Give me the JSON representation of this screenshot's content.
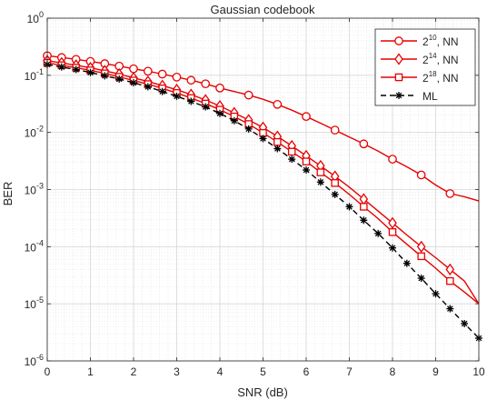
{
  "chart_data": {
    "type": "line",
    "title": "Gaussian codebook",
    "xlabel": "SNR (dB)",
    "ylabel": "BER",
    "xlim": [
      0,
      10
    ],
    "ylim": [
      1e-06,
      1
    ],
    "yscale": "log",
    "grid": true,
    "minor_grid": true,
    "legend_position": "top-right",
    "x_ticks": [
      "0",
      "1",
      "2",
      "3",
      "4",
      "5",
      "6",
      "7",
      "8",
      "9",
      "10"
    ],
    "y_ticks": [
      {
        "base": "10",
        "exp": "-6"
      },
      {
        "base": "10",
        "exp": "-5"
      },
      {
        "base": "10",
        "exp": "-4"
      },
      {
        "base": "10",
        "exp": "-3"
      },
      {
        "base": "10",
        "exp": "-2"
      },
      {
        "base": "10",
        "exp": "-1"
      },
      {
        "base": "10",
        "exp": "0"
      }
    ],
    "series": [
      {
        "name": "2^10, NN",
        "label_base": "2",
        "label_exp": "10",
        "label_suffix": ", NN",
        "color": "#e60000",
        "marker": "circle",
        "dash": "solid",
        "x": [
          0,
          0.333,
          0.667,
          1,
          1.333,
          1.667,
          2,
          2.333,
          2.667,
          3,
          3.333,
          3.667,
          4,
          4.333,
          4.667,
          5,
          5.333,
          5.667,
          6,
          6.333,
          6.667,
          7,
          7.333,
          7.667,
          8,
          8.333,
          8.667,
          9,
          9.333,
          9.667,
          10
        ],
        "y": [
          0.22,
          0.205,
          0.19,
          0.175,
          0.16,
          0.145,
          0.13,
          0.118,
          0.105,
          0.093,
          0.082,
          0.071,
          0.06,
          0.052,
          0.045,
          0.038,
          0.031,
          0.0245,
          0.019,
          0.0145,
          0.011,
          0.0083,
          0.0063,
          0.0047,
          0.0034,
          0.0025,
          0.0018,
          0.0012,
          0.00085,
          0.00075,
          0.00063
        ],
        "marker_x": [
          0,
          0.333,
          0.667,
          1,
          1.333,
          1.667,
          2,
          2.333,
          2.667,
          3,
          3.333,
          3.667,
          4,
          4.667,
          5.333,
          6,
          6.667,
          7.333,
          8,
          8.667,
          9.333
        ],
        "marker_y": [
          0.22,
          0.205,
          0.19,
          0.175,
          0.16,
          0.145,
          0.13,
          0.118,
          0.105,
          0.093,
          0.082,
          0.071,
          0.06,
          0.045,
          0.031,
          0.019,
          0.011,
          0.0063,
          0.0034,
          0.0018,
          0.00085
        ]
      },
      {
        "name": "2^14, NN",
        "label_base": "2",
        "label_exp": "14",
        "label_suffix": ", NN",
        "color": "#e60000",
        "marker": "diamond",
        "dash": "solid",
        "x": [
          0,
          0.333,
          0.667,
          1,
          1.333,
          1.667,
          2,
          2.333,
          2.667,
          3,
          3.333,
          3.667,
          4,
          4.333,
          4.667,
          5,
          5.333,
          5.667,
          6,
          6.333,
          6.667,
          7,
          7.333,
          7.667,
          8,
          8.333,
          8.667,
          9,
          9.333,
          9.667,
          10
        ],
        "y": [
          0.18,
          0.165,
          0.15,
          0.135,
          0.12,
          0.105,
          0.09,
          0.078,
          0.066,
          0.056,
          0.046,
          0.037,
          0.029,
          0.022,
          0.0165,
          0.0122,
          0.0085,
          0.0058,
          0.0039,
          0.0026,
          0.0017,
          0.0011,
          0.00068,
          0.00042,
          0.00026,
          0.00016,
          0.0001,
          6.4e-05,
          4e-05,
          2.5e-05,
          1e-05
        ],
        "marker_x": [
          0,
          0.333,
          0.667,
          1,
          1.333,
          1.667,
          2,
          2.333,
          2.667,
          3,
          3.333,
          3.667,
          4,
          4.333,
          4.667,
          5,
          5.333,
          5.667,
          6,
          6.333,
          6.667,
          7.333,
          8,
          8.667,
          9.333
        ],
        "marker_y": [
          0.18,
          0.165,
          0.15,
          0.135,
          0.12,
          0.105,
          0.09,
          0.078,
          0.066,
          0.056,
          0.046,
          0.037,
          0.029,
          0.022,
          0.0165,
          0.0122,
          0.0085,
          0.0058,
          0.0039,
          0.0026,
          0.0017,
          0.00068,
          0.00026,
          0.0001,
          4e-05
        ]
      },
      {
        "name": "2^18, NN",
        "label_base": "2",
        "label_exp": "18",
        "label_suffix": ", NN",
        "color": "#e60000",
        "marker": "square",
        "dash": "solid",
        "x": [
          0,
          0.333,
          0.667,
          1,
          1.333,
          1.667,
          2,
          2.333,
          2.667,
          3,
          3.333,
          3.667,
          4,
          4.333,
          4.667,
          5,
          5.333,
          5.667,
          6,
          6.333,
          6.667,
          7,
          7.333,
          7.667,
          8,
          8.333,
          8.667,
          9,
          9.333,
          9.667,
          10
        ],
        "y": [
          0.165,
          0.15,
          0.136,
          0.122,
          0.108,
          0.094,
          0.081,
          0.07,
          0.059,
          0.049,
          0.04,
          0.032,
          0.025,
          0.019,
          0.014,
          0.0098,
          0.0068,
          0.0046,
          0.0031,
          0.002,
          0.0013,
          0.00082,
          0.0005,
          0.00031,
          0.00018,
          0.00011,
          6.8e-05,
          4.2e-05,
          2.5e-05,
          1.6e-05,
          1e-05
        ],
        "marker_x": [
          0,
          0.333,
          0.667,
          1,
          1.333,
          1.667,
          2,
          2.333,
          2.667,
          3,
          3.333,
          3.667,
          4,
          4.333,
          4.667,
          5,
          5.333,
          5.667,
          6,
          6.333,
          6.667,
          7.333,
          8,
          8.667,
          9.333
        ],
        "marker_y": [
          0.165,
          0.15,
          0.136,
          0.122,
          0.108,
          0.094,
          0.081,
          0.07,
          0.059,
          0.049,
          0.04,
          0.032,
          0.025,
          0.019,
          0.014,
          0.0098,
          0.0068,
          0.0046,
          0.0031,
          0.002,
          0.0013,
          0.0005,
          0.00018,
          6.8e-05,
          2.5e-05
        ]
      },
      {
        "name": "ML",
        "label_base": "ML",
        "label_exp": "",
        "label_suffix": "",
        "color": "#000000",
        "marker": "star",
        "dash": "dashed",
        "x": [
          0,
          0.333,
          0.667,
          1,
          1.333,
          1.667,
          2,
          2.333,
          2.667,
          3,
          3.333,
          3.667,
          4,
          4.333,
          4.667,
          5,
          5.333,
          5.667,
          6,
          6.333,
          6.667,
          7,
          7.333,
          7.667,
          8,
          8.333,
          8.667,
          9,
          9.333,
          9.667,
          10
        ],
        "y": [
          0.155,
          0.14,
          0.126,
          0.112,
          0.098,
          0.086,
          0.074,
          0.063,
          0.052,
          0.043,
          0.035,
          0.028,
          0.0215,
          0.016,
          0.0115,
          0.0078,
          0.0052,
          0.0034,
          0.0022,
          0.00135,
          0.00082,
          0.0005,
          0.00029,
          0.00017,
          9.5e-05,
          5.1e-05,
          2.8e-05,
          1.5e-05,
          8.2e-06,
          4.5e-06,
          2.5e-06
        ],
        "marker_x": [
          0,
          0.333,
          0.667,
          1,
          1.333,
          1.667,
          2,
          2.333,
          2.667,
          3,
          3.333,
          3.667,
          4,
          4.333,
          4.667,
          5,
          5.333,
          5.667,
          6,
          6.333,
          6.667,
          7,
          7.333,
          7.667,
          8,
          8.333,
          8.667,
          9,
          9.333,
          9.667,
          10
        ],
        "marker_y": [
          0.155,
          0.14,
          0.126,
          0.112,
          0.098,
          0.086,
          0.074,
          0.063,
          0.052,
          0.043,
          0.035,
          0.028,
          0.0215,
          0.016,
          0.0115,
          0.0078,
          0.0052,
          0.0034,
          0.0022,
          0.00135,
          0.00082,
          0.0005,
          0.00029,
          0.00017,
          9.5e-05,
          5.1e-05,
          2.8e-05,
          1.5e-05,
          8.2e-06,
          4.5e-06,
          2.5e-06
        ]
      }
    ]
  }
}
